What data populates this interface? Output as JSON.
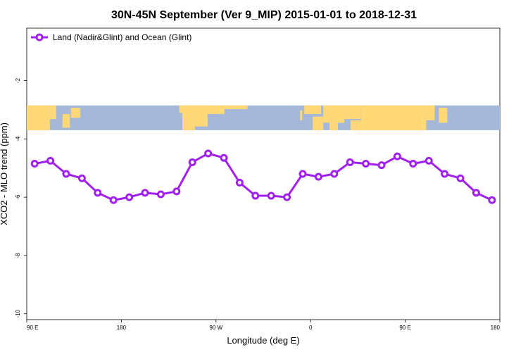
{
  "chart_data": {
    "type": "line",
    "title": "30N-45N September (Ver 9_MIP)   2015-01-01 to 2018-12-31",
    "xlabel": "Longitude (deg E)",
    "ylabel": "XCO2 - MLO trend (ppm)",
    "x_ticks": [
      {
        "value": 90,
        "label": "90 E"
      },
      {
        "value": 180,
        "label": "180"
      },
      {
        "value": 270,
        "label": "90 W"
      },
      {
        "value": 360,
        "label": "0"
      },
      {
        "value": 450,
        "label": "90 E"
      },
      {
        "value": 540,
        "label": "180"
      }
    ],
    "y_ticks": [
      {
        "value": -2,
        "label": "-2"
      },
      {
        "value": -4,
        "label": "-4"
      },
      {
        "value": -6,
        "label": "-6"
      },
      {
        "value": -8,
        "label": "-8"
      },
      {
        "value": -10,
        "label": "-10"
      }
    ],
    "xlim": [
      90,
      540
    ],
    "ylim": [
      -10.2,
      -0.2
    ],
    "legend_position": "top-left",
    "map_band": {
      "ylim": [
        -3.7,
        -2.85
      ]
    },
    "colors": {
      "series": "#a020f0",
      "ocean": "#a5b8d9",
      "land": "#ffd878"
    },
    "series": [
      {
        "name": "Land (Nadir&Glint) and Ocean (Glint)",
        "x": [
          97.5,
          112.5,
          127.5,
          142.5,
          157.5,
          172.5,
          187.5,
          202.5,
          217.5,
          232.5,
          247.5,
          262.5,
          277.5,
          292.5,
          307.5,
          322.5,
          337.5,
          352.5,
          367.5,
          382.5,
          397.5,
          412.5,
          427.5,
          442.5,
          457.5,
          472.5,
          487.5,
          502.5,
          517.5,
          532.5
        ],
        "values": [
          -4.85,
          -4.75,
          -5.2,
          -5.35,
          -5.85,
          -6.1,
          -6.0,
          -5.85,
          -5.9,
          -5.8,
          -4.8,
          -4.5,
          -4.65,
          -5.5,
          -5.95,
          -5.95,
          -6.0,
          -5.2,
          -5.3,
          -5.2,
          -4.8,
          -4.85,
          -4.9,
          -4.6,
          -4.85,
          -4.75,
          -5.2,
          -5.35,
          -5.85,
          -6.1
        ]
      }
    ]
  }
}
